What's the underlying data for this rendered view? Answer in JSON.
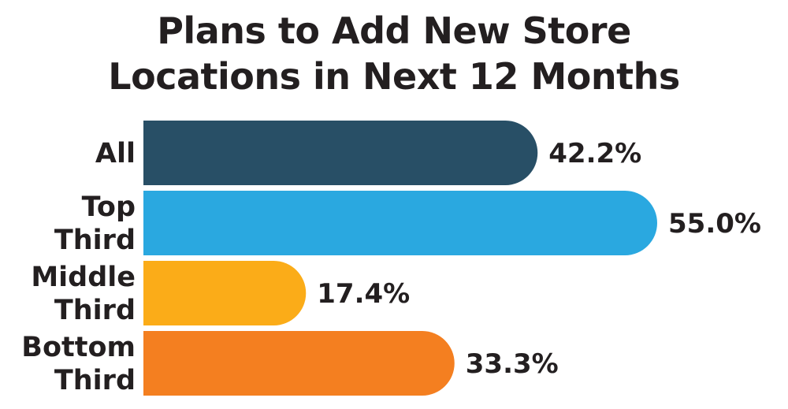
{
  "chart_data": {
    "type": "bar",
    "orientation": "horizontal",
    "title_lines": [
      "Plans to Add New Store",
      "Locations in Next 12 Months"
    ],
    "categories": [
      [
        "All"
      ],
      [
        "Top",
        "Third"
      ],
      [
        "Middle",
        "Third"
      ],
      [
        "Bottom",
        "Third"
      ]
    ],
    "values": [
      42.2,
      55.0,
      17.4,
      33.3
    ],
    "value_labels": [
      "42.2%",
      "55.0%",
      "17.4%",
      "33.3%"
    ],
    "colors": [
      "#284f66",
      "#2aa8e0",
      "#fbac18",
      "#f47f20"
    ],
    "xlim": [
      0,
      55.0
    ],
    "grid": false,
    "legend": "none"
  }
}
